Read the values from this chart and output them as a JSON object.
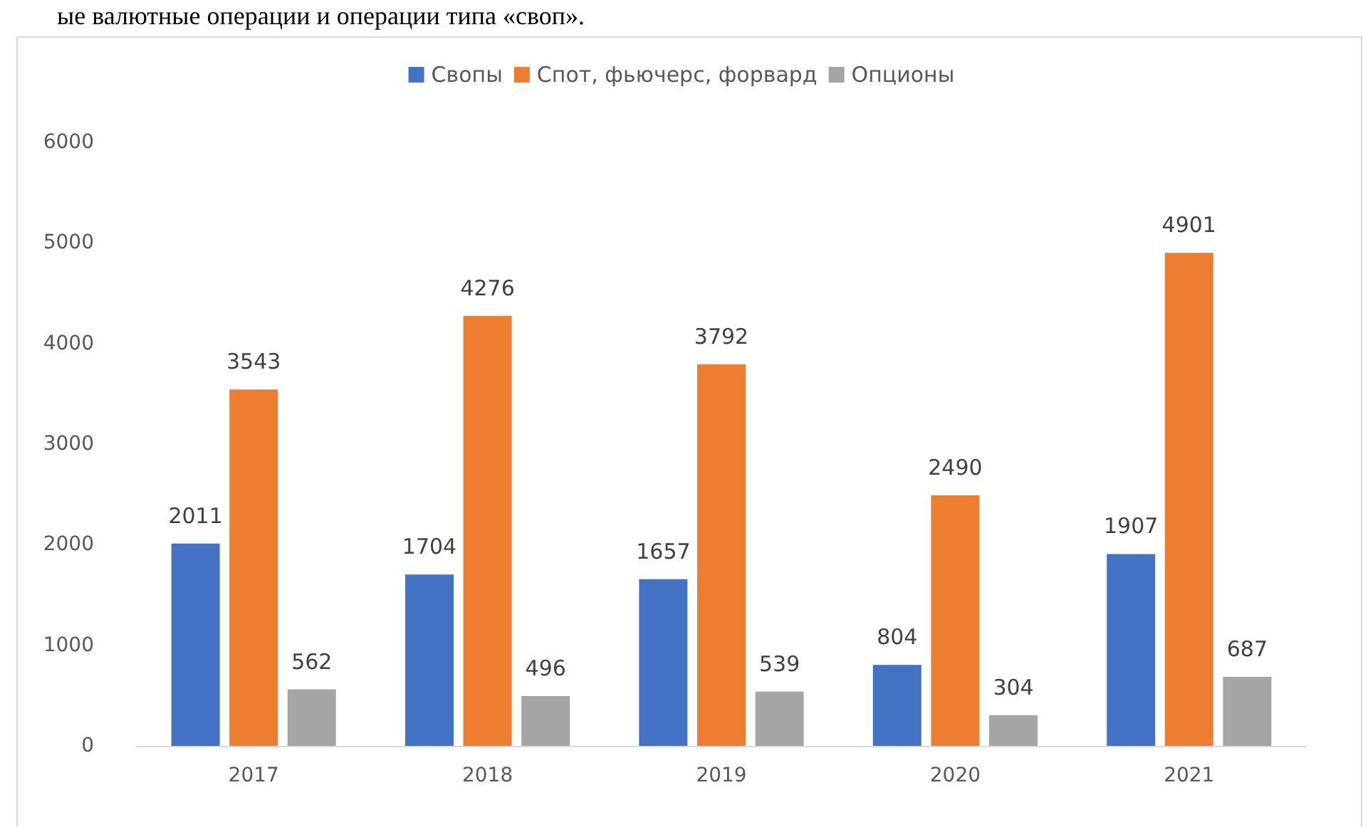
{
  "chart_data": {
    "type": "bar",
    "categories": [
      "2017",
      "2018",
      "2019",
      "2020",
      "2021"
    ],
    "series": [
      {
        "name": "Свопы",
        "color": "#4472c4",
        "values": [
          2011,
          1704,
          1657,
          804,
          1907
        ]
      },
      {
        "name": "Спот, фьючерс, форвард",
        "color": "#ed7d31",
        "values": [
          3543,
          4276,
          3792,
          2490,
          4901
        ]
      },
      {
        "name": "Опционы",
        "color": "#a5a5a5",
        "values": [
          562,
          496,
          539,
          304,
          687
        ]
      }
    ],
    "ylim": [
      0,
      6000
    ],
    "yticks": [
      0,
      1000,
      2000,
      3000,
      4000,
      5000,
      6000
    ],
    "grid": false,
    "legend": "top",
    "data_labels": true,
    "annotations": [
      "ые валютные операции и операции типа «своп»."
    ]
  }
}
